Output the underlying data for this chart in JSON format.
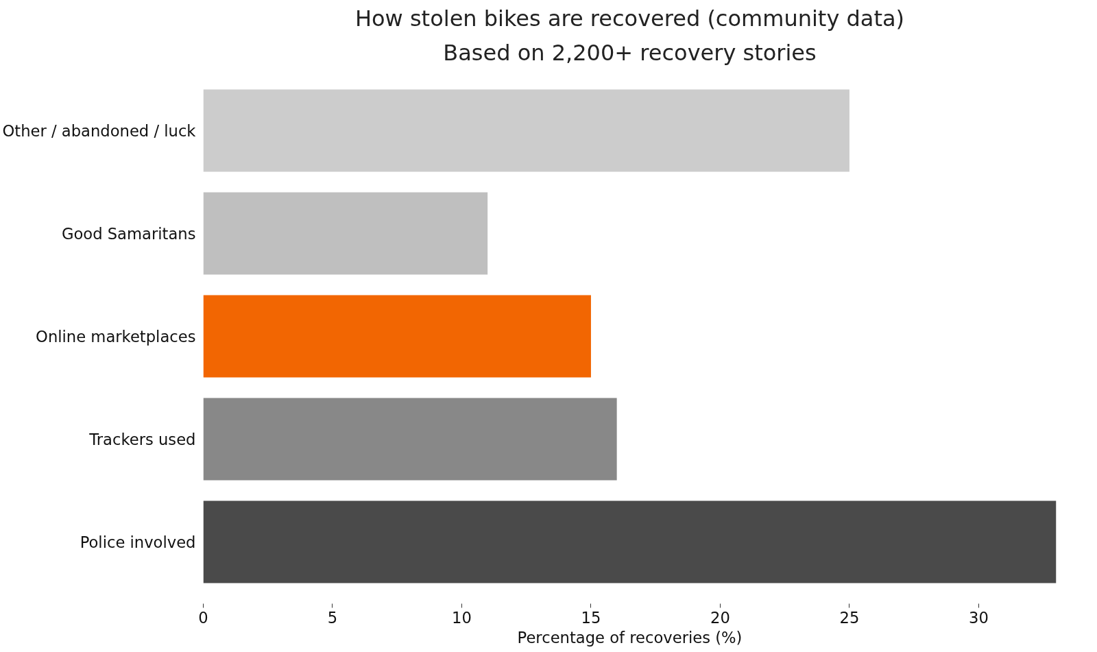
{
  "chart_data": {
    "type": "bar",
    "orientation": "horizontal",
    "title": "How stolen bikes are recovered (community data)",
    "subtitle": "Based on 2,200+ recovery stories",
    "xlabel": "Percentage of recoveries (%)",
    "categories": [
      "Other / abandoned / luck",
      "Good Samaritans",
      "Online marketplaces",
      "Trackers used",
      "Police involved"
    ],
    "values": [
      25,
      11,
      15,
      16,
      33
    ],
    "colors": [
      "#cccccc",
      "#bfbfbf",
      "#f26602",
      "#888888",
      "#4a4a4a"
    ],
    "xlim": [
      0,
      33
    ],
    "xticks": [
      0,
      5,
      10,
      15,
      20,
      25,
      30
    ],
    "grid": false
  }
}
